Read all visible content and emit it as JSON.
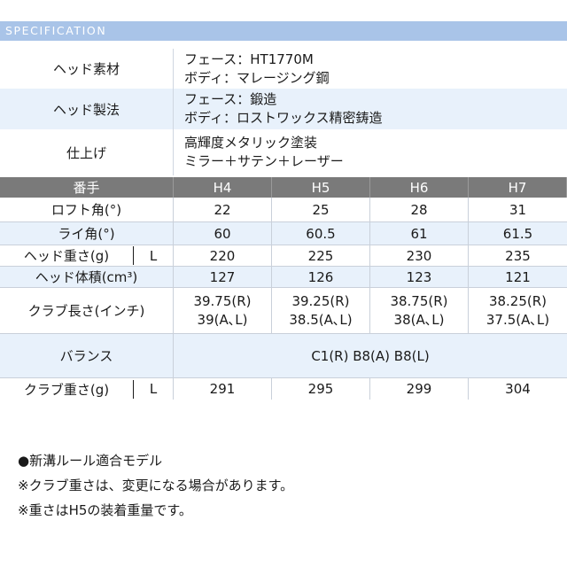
{
  "section_title": "SPECIFICATION",
  "top": [
    {
      "label": "ヘッド素材",
      "lines": [
        "フェース：HT1770M",
        "ボディ：マレージング鋼"
      ]
    },
    {
      "label": "ヘッド製法",
      "lines": [
        "フェース：鍛造",
        "ボディ：ロストワックス精密鋳造"
      ]
    },
    {
      "label": "仕上げ",
      "lines": [
        "高輝度メタリック塗装",
        "ミラー＋サテン＋レーザー"
      ]
    }
  ],
  "table": {
    "header": {
      "label": "番手",
      "cols": [
        "H4",
        "H5",
        "H6",
        "H7"
      ]
    },
    "loft": {
      "label": "ロフト角(°)",
      "vals": [
        "22",
        "25",
        "28",
        "31"
      ]
    },
    "lie": {
      "label": "ライ角(°)",
      "vals": [
        "60",
        "60.5",
        "61",
        "61.5"
      ]
    },
    "head_weight": {
      "label": "ヘッド重さ(g)",
      "flex": "L",
      "vals": [
        "220",
        "225",
        "230",
        "235"
      ]
    },
    "head_volume": {
      "label": "ヘッド体積(cm³)",
      "vals": [
        "127",
        "126",
        "123",
        "121"
      ]
    },
    "club_length": {
      "label": "クラブ長さ(インチ)",
      "vals": [
        {
          "l1": "39.75(R)",
          "l2": "39(A､L)"
        },
        {
          "l1": "39.25(R)",
          "l2": "38.5(A､L)"
        },
        {
          "l1": "38.75(R)",
          "l2": "38(A､L)"
        },
        {
          "l1": "38.25(R)",
          "l2": "37.5(A､L)"
        }
      ]
    },
    "balance": {
      "label": "バランス",
      "value": "C1(R)  B8(A)  B8(L)"
    },
    "club_weight": {
      "label": "クラブ重さ(g)",
      "flex": "L",
      "vals": [
        "291",
        "295",
        "299",
        "304"
      ]
    }
  },
  "notes": [
    "●新溝ルール適合モデル",
    "※クラブ重さは、変更になる場合があります。",
    "※重さはH5の装着重量です。"
  ]
}
